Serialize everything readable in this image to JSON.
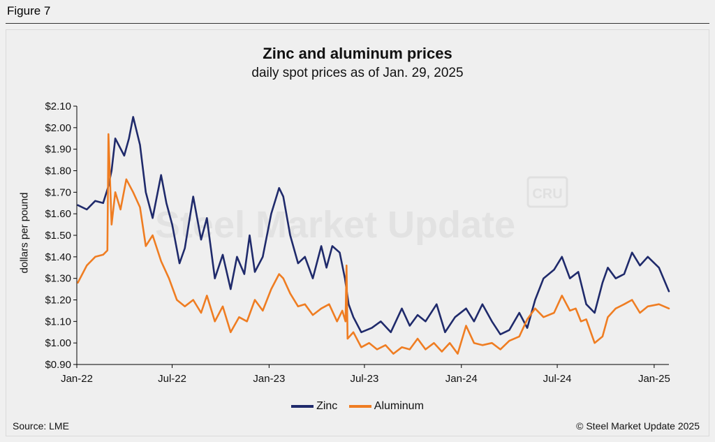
{
  "figure_label": "Figure 7",
  "footer": {
    "source": "Source: LME",
    "copyright": "© Steel Market Update 2025"
  },
  "watermark": {
    "text": "Steel Market Update",
    "badge": "CRU"
  },
  "colors": {
    "zinc": "#1f2a6b",
    "aluminum": "#ef7d22",
    "axis": "#000000"
  },
  "chart_data": {
    "type": "line",
    "title": "Zinc and aluminum prices",
    "subtitle": "daily spot prices as of  Jan. 29, 2025",
    "ylabel": "dollars per pound",
    "xlabel": "",
    "ylim": [
      0.9,
      2.1
    ],
    "y_ticks": [
      0.9,
      1.0,
      1.1,
      1.2,
      1.3,
      1.4,
      1.5,
      1.6,
      1.7,
      1.8,
      1.9,
      2.0,
      2.1
    ],
    "y_tick_labels": [
      "$0.90",
      "$1.00",
      "$1.10",
      "$1.20",
      "$1.30",
      "$1.40",
      "$1.50",
      "$1.60",
      "$1.70",
      "$1.80",
      "$1.90",
      "$2.00",
      "$2.10"
    ],
    "x_range": [
      "2022-01-01",
      "2025-01-29"
    ],
    "x_ticks": [
      "2022-01-01",
      "2022-07-01",
      "2023-01-01",
      "2023-07-01",
      "2024-01-01",
      "2024-07-01",
      "2025-01-01"
    ],
    "x_tick_labels": [
      "Jan-22",
      "Jul-22",
      "Jan-23",
      "Jul-23",
      "Jan-24",
      "Jul-24",
      "Jan-25"
    ],
    "legend_position": "bottom",
    "grid": false,
    "series": [
      {
        "name": "Zinc",
        "x": [
          "2022-01-03",
          "2022-01-20",
          "2022-02-05",
          "2022-02-20",
          "2022-03-01",
          "2022-03-08",
          "2022-03-15",
          "2022-04-01",
          "2022-04-10",
          "2022-04-18",
          "2022-05-01",
          "2022-05-12",
          "2022-05-25",
          "2022-06-10",
          "2022-06-20",
          "2022-07-01",
          "2022-07-15",
          "2022-07-25",
          "2022-08-10",
          "2022-08-25",
          "2022-09-05",
          "2022-09-20",
          "2022-10-05",
          "2022-10-20",
          "2022-11-01",
          "2022-11-15",
          "2022-11-25",
          "2022-12-05",
          "2022-12-20",
          "2023-01-05",
          "2023-01-20",
          "2023-01-28",
          "2023-02-10",
          "2023-02-25",
          "2023-03-10",
          "2023-03-25",
          "2023-04-10",
          "2023-04-20",
          "2023-05-01",
          "2023-05-15",
          "2023-05-25",
          "2023-06-01",
          "2023-06-10",
          "2023-06-25",
          "2023-07-15",
          "2023-08-01",
          "2023-08-20",
          "2023-09-10",
          "2023-09-25",
          "2023-10-10",
          "2023-10-25",
          "2023-11-15",
          "2023-12-01",
          "2023-12-20",
          "2024-01-10",
          "2024-01-25",
          "2024-02-10",
          "2024-02-28",
          "2024-03-15",
          "2024-04-01",
          "2024-04-20",
          "2024-05-05",
          "2024-05-20",
          "2024-06-05",
          "2024-06-25",
          "2024-07-10",
          "2024-07-25",
          "2024-08-10",
          "2024-08-25",
          "2024-09-10",
          "2024-09-25",
          "2024-10-05",
          "2024-10-20",
          "2024-11-05",
          "2024-11-20",
          "2024-12-05",
          "2024-12-20",
          "2025-01-10",
          "2025-01-29"
        ],
        "values": [
          1.64,
          1.62,
          1.66,
          1.65,
          1.72,
          1.8,
          1.95,
          1.87,
          1.95,
          2.05,
          1.92,
          1.7,
          1.58,
          1.78,
          1.65,
          1.55,
          1.37,
          1.44,
          1.68,
          1.48,
          1.58,
          1.3,
          1.41,
          1.25,
          1.4,
          1.32,
          1.5,
          1.33,
          1.4,
          1.6,
          1.72,
          1.68,
          1.5,
          1.37,
          1.4,
          1.3,
          1.45,
          1.35,
          1.45,
          1.42,
          1.3,
          1.18,
          1.12,
          1.05,
          1.07,
          1.1,
          1.05,
          1.16,
          1.08,
          1.13,
          1.1,
          1.18,
          1.05,
          1.12,
          1.16,
          1.1,
          1.18,
          1.1,
          1.04,
          1.06,
          1.14,
          1.07,
          1.2,
          1.3,
          1.34,
          1.4,
          1.3,
          1.33,
          1.18,
          1.14,
          1.28,
          1.35,
          1.3,
          1.32,
          1.42,
          1.36,
          1.4,
          1.35,
          1.24
        ]
      },
      {
        "name": "Aluminum",
        "x": [
          "2022-01-03",
          "2022-01-20",
          "2022-02-05",
          "2022-02-20",
          "2022-02-28",
          "2022-03-02",
          "2022-03-08",
          "2022-03-15",
          "2022-03-25",
          "2022-04-05",
          "2022-04-18",
          "2022-05-01",
          "2022-05-12",
          "2022-05-25",
          "2022-06-10",
          "2022-06-25",
          "2022-07-10",
          "2022-07-25",
          "2022-08-10",
          "2022-08-25",
          "2022-09-05",
          "2022-09-20",
          "2022-10-05",
          "2022-10-20",
          "2022-11-05",
          "2022-11-20",
          "2022-12-05",
          "2022-12-20",
          "2023-01-05",
          "2023-01-20",
          "2023-01-28",
          "2023-02-10",
          "2023-02-25",
          "2023-03-10",
          "2023-03-25",
          "2023-04-10",
          "2023-04-25",
          "2023-05-10",
          "2023-05-20",
          "2023-05-26",
          "2023-05-28",
          "2023-05-30",
          "2023-06-10",
          "2023-06-25",
          "2023-07-10",
          "2023-07-25",
          "2023-08-10",
          "2023-08-25",
          "2023-09-10",
          "2023-09-25",
          "2023-10-10",
          "2023-10-25",
          "2023-11-10",
          "2023-11-25",
          "2023-12-10",
          "2023-12-25",
          "2024-01-10",
          "2024-01-25",
          "2024-02-10",
          "2024-02-28",
          "2024-03-15",
          "2024-04-01",
          "2024-04-20",
          "2024-05-05",
          "2024-05-20",
          "2024-06-05",
          "2024-06-25",
          "2024-07-10",
          "2024-07-25",
          "2024-08-05",
          "2024-08-15",
          "2024-08-25",
          "2024-09-10",
          "2024-09-25",
          "2024-10-05",
          "2024-10-20",
          "2024-11-05",
          "2024-11-20",
          "2024-12-05",
          "2024-12-20",
          "2025-01-10",
          "2025-01-29"
        ],
        "values": [
          1.28,
          1.36,
          1.4,
          1.41,
          1.43,
          1.97,
          1.55,
          1.7,
          1.62,
          1.76,
          1.7,
          1.63,
          1.45,
          1.5,
          1.38,
          1.3,
          1.2,
          1.17,
          1.2,
          1.14,
          1.22,
          1.1,
          1.17,
          1.05,
          1.12,
          1.1,
          1.2,
          1.15,
          1.25,
          1.32,
          1.3,
          1.23,
          1.17,
          1.18,
          1.13,
          1.16,
          1.18,
          1.1,
          1.15,
          1.1,
          1.36,
          1.02,
          1.05,
          0.98,
          1.0,
          0.97,
          0.99,
          0.95,
          0.98,
          0.97,
          1.02,
          0.97,
          1.0,
          0.96,
          1.0,
          0.95,
          1.08,
          1.0,
          0.99,
          1.0,
          0.97,
          1.01,
          1.03,
          1.11,
          1.16,
          1.12,
          1.14,
          1.22,
          1.15,
          1.16,
          1.1,
          1.11,
          1.0,
          1.03,
          1.12,
          1.16,
          1.18,
          1.2,
          1.14,
          1.17,
          1.18,
          1.16
        ]
      }
    ]
  }
}
